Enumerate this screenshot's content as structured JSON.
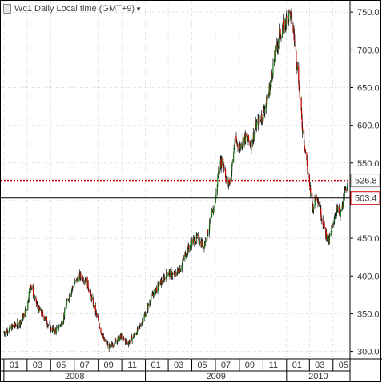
{
  "header": {
    "title": "Wc1 Daily Local time (GMT+9)",
    "dropdown_icon": "caret-down-icon"
  },
  "colors": {
    "up_candle": "#1a7a1a",
    "down_candle": "#cc0000",
    "dotted_line": "#cc0000",
    "solid_line": "#000000",
    "grid": "#bbbbbb"
  },
  "chart_data": {
    "type": "line",
    "x_months": [
      "01",
      "03",
      "05",
      "07",
      "09",
      "11",
      "01",
      "03",
      "05",
      "07",
      "09",
      "11",
      "01",
      "03",
      "05"
    ],
    "years": [
      "2008",
      "2009",
      "2010"
    ],
    "y_ticks": [
      300.0,
      350.0,
      400.0,
      450.0,
      500.0,
      550.0,
      600.0,
      650.0,
      700.0,
      750.0
    ],
    "y_tick_labels": [
      "300.0",
      "350.0",
      "400.0",
      "450.0",
      "500.0",
      "550.0",
      "600.0",
      "650.0",
      "700.0",
      "750.0"
    ],
    "ylim": [
      290,
      765
    ],
    "xlim": [
      "2007-12-24",
      "2010-06-14"
    ],
    "price_lines": [
      {
        "value": 526.8,
        "label": "526.8",
        "style": "dotted"
      },
      {
        "value": 503.4,
        "label": "503.4",
        "style": "solid"
      }
    ],
    "series": [
      {
        "values": [
          [
            "2008-01-01",
            325
          ],
          [
            "2008-01-15",
            330
          ],
          [
            "2008-02-01",
            335
          ],
          [
            "2008-02-15",
            340
          ],
          [
            "2008-03-01",
            360
          ],
          [
            "2008-03-10",
            390
          ],
          [
            "2008-03-20",
            370
          ],
          [
            "2008-04-01",
            355
          ],
          [
            "2008-04-15",
            345
          ],
          [
            "2008-05-01",
            330
          ],
          [
            "2008-05-15",
            328
          ],
          [
            "2008-06-01",
            340
          ],
          [
            "2008-06-15",
            370
          ],
          [
            "2008-07-01",
            390
          ],
          [
            "2008-07-15",
            400
          ],
          [
            "2008-08-01",
            395
          ],
          [
            "2008-08-15",
            370
          ],
          [
            "2008-09-01",
            340
          ],
          [
            "2008-09-15",
            315
          ],
          [
            "2008-10-01",
            305
          ],
          [
            "2008-10-15",
            315
          ],
          [
            "2008-11-01",
            320
          ],
          [
            "2008-11-15",
            310
          ],
          [
            "2008-12-01",
            320
          ],
          [
            "2008-12-15",
            330
          ],
          [
            "2009-01-01",
            350
          ],
          [
            "2009-01-15",
            370
          ],
          [
            "2009-02-01",
            385
          ],
          [
            "2009-02-15",
            395
          ],
          [
            "2009-03-01",
            405
          ],
          [
            "2009-03-15",
            400
          ],
          [
            "2009-04-01",
            410
          ],
          [
            "2009-04-15",
            430
          ],
          [
            "2009-05-01",
            445
          ],
          [
            "2009-05-15",
            450
          ],
          [
            "2009-06-01",
            440
          ],
          [
            "2009-06-15",
            465
          ],
          [
            "2009-07-01",
            500
          ],
          [
            "2009-07-10",
            545
          ],
          [
            "2009-07-20",
            555
          ],
          [
            "2009-08-01",
            520
          ],
          [
            "2009-08-10",
            530
          ],
          [
            "2009-08-20",
            580
          ],
          [
            "2009-09-01",
            570
          ],
          [
            "2009-09-15",
            585
          ],
          [
            "2009-10-01",
            575
          ],
          [
            "2009-10-15",
            600
          ],
          [
            "2009-11-01",
            615
          ],
          [
            "2009-11-15",
            640
          ],
          [
            "2009-12-01",
            690
          ],
          [
            "2009-12-15",
            720
          ],
          [
            "2010-01-01",
            740
          ],
          [
            "2010-01-10",
            750
          ],
          [
            "2010-01-20",
            720
          ],
          [
            "2010-02-01",
            660
          ],
          [
            "2010-02-10",
            600
          ],
          [
            "2010-02-20",
            560
          ],
          [
            "2010-03-01",
            520
          ],
          [
            "2010-03-10",
            490
          ],
          [
            "2010-03-20",
            510
          ],
          [
            "2010-04-01",
            480
          ],
          [
            "2010-04-10",
            460
          ],
          [
            "2010-04-20",
            445
          ],
          [
            "2010-05-01",
            470
          ],
          [
            "2010-05-10",
            490
          ],
          [
            "2010-05-20",
            480
          ],
          [
            "2010-06-01",
            510
          ],
          [
            "2010-06-08",
            526.8
          ]
        ]
      }
    ]
  }
}
